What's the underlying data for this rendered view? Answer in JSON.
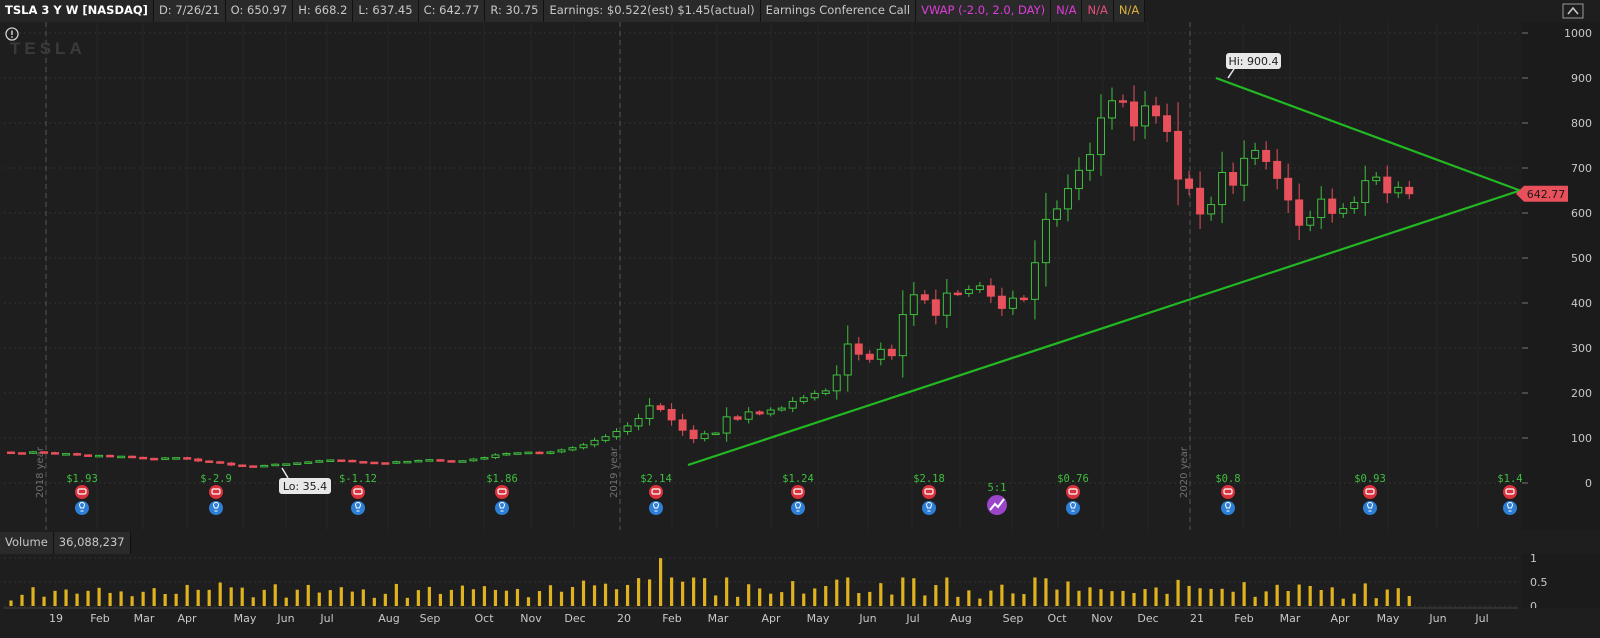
{
  "header": {
    "symbol": "TSLA 3 Y W [NASDAQ]",
    "date": "D: 7/26/21",
    "open": "O: 650.97",
    "high": "H: 668.2",
    "low": "L: 637.45",
    "close": "C: 642.77",
    "range": "R: 30.75",
    "earnings": "Earnings: $0.522(est) $1.45(actual)",
    "conference": "Earnings Conference Call",
    "vwap": "VWAP (-2.0, 2.0, DAY)",
    "na1": "N/A",
    "na2": "N/A",
    "na3": "N/A"
  },
  "logo_text": "TESLA",
  "price_axis": {
    "ticks": [
      0,
      100,
      200,
      300,
      400,
      500,
      600,
      700,
      800,
      900,
      1000
    ],
    "last_price": "642.77",
    "last_price_color": "#e8505b"
  },
  "annotations": {
    "high": "Hi: 900.4",
    "low": "Lo: 35.4"
  },
  "year_labels": [
    "2018 year",
    "2019 year",
    "2020 year"
  ],
  "earnings_events": [
    {
      "label": "$1.93"
    },
    {
      "label": "$-2.9"
    },
    {
      "label": "$-1.12"
    },
    {
      "label": "$1.86"
    },
    {
      "label": "$2.14"
    },
    {
      "label": "$1.24"
    },
    {
      "label": "$2.18"
    },
    {
      "label": "$0.76"
    },
    {
      "label": "$0.8"
    },
    {
      "label": "$0.93"
    },
    {
      "label": "$1.4"
    }
  ],
  "split_event": {
    "label": "5:1"
  },
  "volume": {
    "title": "Volume",
    "value": "36,088,237",
    "ticks": [
      "1",
      "0.5",
      "0"
    ]
  },
  "time_axis": [
    "19",
    "Feb",
    "Mar",
    "Apr",
    "May",
    "Jun",
    "Jul",
    "Aug",
    "Sep",
    "Oct",
    "Nov",
    "Dec",
    "20",
    "Feb",
    "Mar",
    "Apr",
    "May",
    "Jun",
    "Jul",
    "Aug",
    "Sep",
    "Oct",
    "Nov",
    "Dec",
    "21",
    "Feb",
    "Mar",
    "Apr",
    "May",
    "Jun",
    "Jul"
  ],
  "colors": {
    "up": "#3fbf3f",
    "down": "#e8505b",
    "trendline": "#22b822",
    "volume_bar": "#e0b21e",
    "grid": "#3a3a3a"
  },
  "chart_data": {
    "type": "candlestick",
    "interval": "weekly",
    "price_range": [
      0,
      1000
    ],
    "weekly_closes": [
      67.3,
      66.6,
      69.3,
      67.5,
      64.9,
      65.3,
      62.4,
      60.7,
      61.4,
      58.9,
      59.5,
      57.0,
      54.7,
      53.0,
      55.8,
      56.3,
      53.4,
      49.0,
      47.2,
      44.2,
      40.0,
      38.1,
      36.9,
      39.1,
      41.8,
      42.5,
      44.6,
      46.9,
      49.5,
      51.2,
      50.3,
      47.6,
      46.2,
      45.0,
      44.1,
      47.3,
      48.0,
      50.2,
      51.8,
      49.6,
      47.8,
      49.4,
      53.2,
      56.5,
      62.4,
      65.6,
      67.1,
      68.5,
      66.0,
      69.2,
      73.6,
      78.4,
      84.9,
      94.7,
      102.9,
      114.4,
      126.8,
      143.3,
      171.5,
      163.4,
      140.2,
      117.3,
      98.7,
      109.3,
      111.0,
      147.0,
      141.7,
      158.0,
      153.6,
      162.2,
      166.4,
      181.2,
      189.4,
      199.0,
      204.8,
      240.0,
      308.9,
      286.2,
      274.9,
      297.0,
      283.0,
      374.3,
      418.3,
      407.0,
      372.7,
      422.0,
      421.3,
      429.9,
      438.1,
      415.1,
      388.0,
      410.8,
      408.1,
      489.6,
      585.8,
      609.1,
      654.3,
      694.8,
      729.8,
      811.2,
      849.4,
      846.6,
      793.5,
      838.0,
      816.1,
      781.3,
      675.5,
      654.9,
      597.9,
      618.7,
      690.0,
      661.8,
      721.4,
      739.0,
      714.6,
      677.0,
      629.0,
      572.8,
      589.9,
      630.9,
      599.2,
      609.9,
      623.3,
      671.9,
      679.7,
      644.8,
      657.0,
      642.8
    ],
    "annotations": {
      "high": 900.4,
      "low": 35.4
    },
    "trendlines": [
      {
        "from": [
          "2020-02",
          40
        ],
        "to": [
          "2021-07",
          650
        ]
      },
      {
        "from": [
          "2021-01",
          900
        ],
        "to": [
          "2021-07",
          650
        ]
      }
    ]
  }
}
